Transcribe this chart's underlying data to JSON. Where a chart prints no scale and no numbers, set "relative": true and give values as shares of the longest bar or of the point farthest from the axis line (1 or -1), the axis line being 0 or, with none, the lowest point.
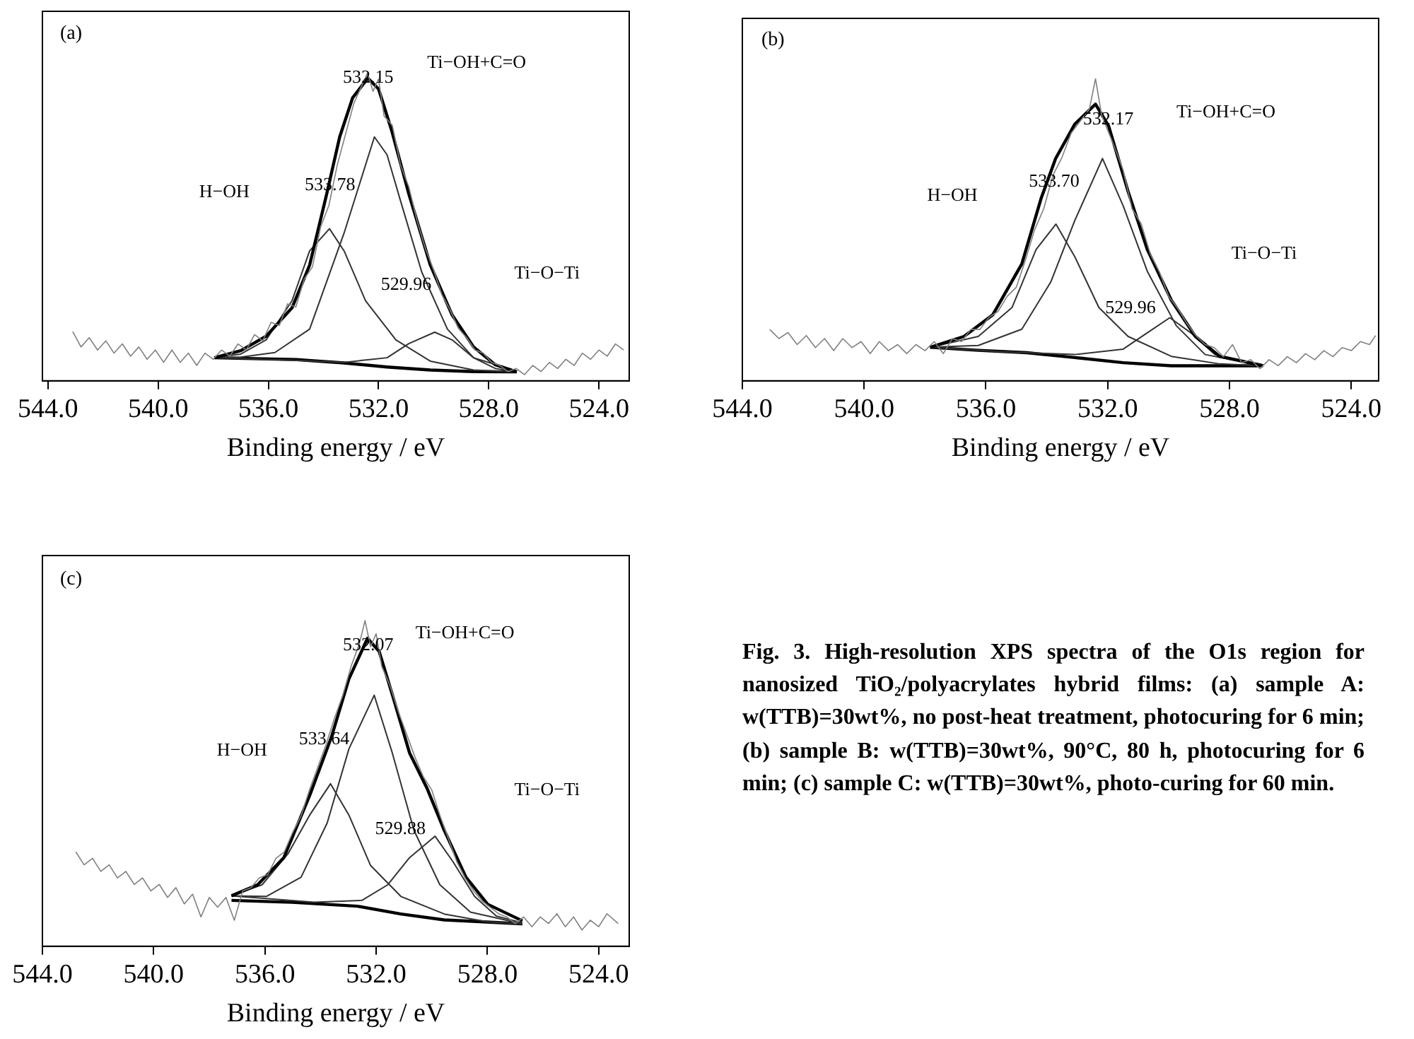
{
  "chart_data": [
    {
      "type": "line",
      "relative": true,
      "xlabel": "Binding energy / eV",
      "xlim": [
        544.2,
        522.9
      ],
      "xticks": [
        {
          "value": 544,
          "label": "544.0"
        },
        {
          "value": 540,
          "label": "540.0"
        },
        {
          "value": 536,
          "label": "536.0"
        },
        {
          "value": 532,
          "label": "532.0"
        },
        {
          "value": 528,
          "label": "528.0"
        },
        {
          "value": 524,
          "label": "524.0"
        }
      ],
      "tick_labels": "x",
      "grid": false,
      "legend": false,
      "marker": "none",
      "line_style": "solid",
      "series": [
        {
          "color": "#808080",
          "x": [
            543.1,
            542.8,
            542.5,
            542.2,
            541.9,
            541.6,
            541.3,
            541.0,
            540.7,
            540.4,
            540.1,
            539.8,
            539.5,
            539.2,
            538.9,
            538.6,
            538.3,
            538.0,
            537.7,
            537.4,
            537.1,
            536.8,
            536.5,
            536.2,
            535.9,
            535.6,
            535.3,
            535.0,
            534.7,
            534.4,
            534.1,
            533.8,
            533.5,
            533.2,
            532.9,
            532.6,
            532.4,
            532.2,
            532.0,
            531.8,
            531.5,
            531.2,
            530.9,
            530.6,
            530.3,
            530.0,
            529.7,
            529.4,
            529.1,
            528.8,
            528.5,
            528.2,
            527.9,
            527.6,
            527.3,
            527.0,
            526.7,
            526.4,
            526.1,
            525.8,
            525.5,
            525.2,
            524.9,
            524.6,
            524.3,
            524.0,
            523.7,
            523.4,
            523.1
          ],
          "values": [
            0.16,
            0.11,
            0.14,
            0.1,
            0.13,
            0.09,
            0.12,
            0.08,
            0.11,
            0.07,
            0.1,
            0.06,
            0.1,
            0.06,
            0.09,
            0.05,
            0.09,
            0.07,
            0.1,
            0.08,
            0.12,
            0.1,
            0.15,
            0.13,
            0.19,
            0.18,
            0.25,
            0.24,
            0.33,
            0.37,
            0.5,
            0.57,
            0.7,
            0.8,
            0.9,
            0.96,
            1.0,
            0.94,
            0.98,
            0.86,
            0.83,
            0.7,
            0.63,
            0.52,
            0.43,
            0.36,
            0.28,
            0.23,
            0.17,
            0.14,
            0.1,
            0.09,
            0.06,
            0.05,
            0.03,
            0.04,
            0.02,
            0.05,
            0.03,
            0.06,
            0.04,
            0.07,
            0.05,
            0.09,
            0.07,
            0.1,
            0.08,
            0.12,
            0.1
          ]
        },
        {
          "color": "#000000",
          "x": [
            537.96,
            537.0,
            536.08,
            535.14,
            534.5,
            533.88,
            533.41,
            532.94,
            532.39,
            532.0,
            531.53,
            530.9,
            530.12,
            529.33,
            528.55,
            527.76,
            526.98
          ],
          "values": [
            0.075,
            0.098,
            0.145,
            0.237,
            0.376,
            0.607,
            0.792,
            0.919,
            0.983,
            0.948,
            0.815,
            0.607,
            0.376,
            0.214,
            0.11,
            0.052,
            0.029
          ]
        },
        {
          "color": "#333333",
          "x": [
            537.96,
            537.0,
            535.76,
            534.5,
            533.25,
            532.15,
            531.69,
            531.2,
            530.43,
            529.5,
            528.55,
            526.98
          ],
          "values": [
            0.075,
            0.077,
            0.092,
            0.168,
            0.48,
            0.792,
            0.734,
            0.584,
            0.353,
            0.168,
            0.075,
            0.031
          ]
        },
        {
          "color": "#333333",
          "x": [
            537.96,
            537.0,
            536.08,
            535.14,
            534.5,
            533.78,
            533.25,
            532.47,
            531.37,
            530.12,
            528.55,
            526.98
          ],
          "values": [
            0.075,
            0.087,
            0.133,
            0.26,
            0.422,
            0.494,
            0.422,
            0.26,
            0.133,
            0.064,
            0.035,
            0.029
          ]
        },
        {
          "color": "#333333",
          "x": [
            537.96,
            534.82,
            533.25,
            531.69,
            530.9,
            529.96,
            529.33,
            528.55,
            527.76,
            526.98
          ],
          "values": [
            0.075,
            0.066,
            0.06,
            0.075,
            0.121,
            0.158,
            0.133,
            0.075,
            0.04,
            0.029
          ]
        },
        {
          "color": "#000000",
          "x": [
            537.96,
            534.98,
            533.25,
            531.69,
            530.12,
            528.55,
            526.98
          ],
          "values": [
            0.075,
            0.069,
            0.058,
            0.045,
            0.035,
            0.03,
            0.029
          ]
        }
      ],
      "annotations": [
        "(a)",
        "532.15",
        "Ti−OH+C=O",
        "H−OH",
        "533.78",
        "529.96",
        "Ti−O−Ti"
      ]
    },
    {
      "type": "line",
      "relative": true,
      "xlabel": "Binding energy / eV",
      "xlim": [
        544.0,
        523.1
      ],
      "xticks": [
        {
          "value": 544,
          "label": "544.0"
        },
        {
          "value": 540,
          "label": "540.0"
        },
        {
          "value": 536,
          "label": "536.0"
        },
        {
          "value": 532,
          "label": "532.0"
        },
        {
          "value": 528,
          "label": "528.0"
        },
        {
          "value": 524,
          "label": "524.0"
        }
      ],
      "tick_labels": "x",
      "grid": false,
      "legend": false,
      "marker": "none",
      "line_style": "solid",
      "series": [
        {
          "color": "#808080",
          "x": [
            543.1,
            542.8,
            542.5,
            542.2,
            541.9,
            541.6,
            541.3,
            541.0,
            540.7,
            540.4,
            540.1,
            539.8,
            539.5,
            539.2,
            538.9,
            538.6,
            538.3,
            538.0,
            537.7,
            537.4,
            537.1,
            536.8,
            536.5,
            536.2,
            535.9,
            535.6,
            535.3,
            535.0,
            534.7,
            534.4,
            534.1,
            533.8,
            533.5,
            533.2,
            532.9,
            532.6,
            532.4,
            532.2,
            532.0,
            531.8,
            531.5,
            531.2,
            530.9,
            530.6,
            530.3,
            530.0,
            529.7,
            529.4,
            529.1,
            528.8,
            528.5,
            528.2,
            527.9,
            527.6,
            527.3,
            527.0,
            526.7,
            526.4,
            526.1,
            525.8,
            525.5,
            525.2,
            524.9,
            524.6,
            524.3,
            524.0,
            523.7,
            523.4,
            523.2
          ],
          "values": [
            0.17,
            0.14,
            0.16,
            0.12,
            0.15,
            0.11,
            0.14,
            0.1,
            0.14,
            0.11,
            0.13,
            0.09,
            0.13,
            0.1,
            0.12,
            0.09,
            0.12,
            0.1,
            0.13,
            0.09,
            0.14,
            0.13,
            0.17,
            0.17,
            0.21,
            0.23,
            0.28,
            0.31,
            0.4,
            0.5,
            0.57,
            0.68,
            0.74,
            0.82,
            0.86,
            0.9,
            1.0,
            0.88,
            0.83,
            0.78,
            0.7,
            0.57,
            0.52,
            0.42,
            0.36,
            0.28,
            0.24,
            0.19,
            0.15,
            0.12,
            0.11,
            0.08,
            0.12,
            0.06,
            0.07,
            0.04,
            0.07,
            0.05,
            0.08,
            0.06,
            0.09,
            0.07,
            0.1,
            0.08,
            0.11,
            0.1,
            0.13,
            0.12,
            0.15
          ]
        },
        {
          "color": "#000000",
          "x": [
            537.83,
            536.72,
            535.77,
            534.82,
            534.19,
            533.71,
            533.08,
            532.4,
            531.97,
            531.33,
            530.7,
            529.91,
            529.12,
            528.32,
            526.9
          ],
          "values": [
            0.111,
            0.147,
            0.219,
            0.387,
            0.603,
            0.736,
            0.85,
            0.916,
            0.844,
            0.627,
            0.435,
            0.267,
            0.147,
            0.081,
            0.05
          ]
        },
        {
          "color": "#333333",
          "x": [
            537.83,
            536.25,
            534.82,
            533.87,
            533.08,
            532.17,
            531.49,
            530.7,
            529.75,
            528.8,
            526.9
          ],
          "values": [
            0.111,
            0.117,
            0.171,
            0.327,
            0.531,
            0.736,
            0.579,
            0.363,
            0.183,
            0.087,
            0.05
          ]
        },
        {
          "color": "#333333",
          "x": [
            537.83,
            536.25,
            535.14,
            534.35,
            533.7,
            533.08,
            532.29,
            531.33,
            529.91,
            528.32,
            526.9
          ],
          "values": [
            0.111,
            0.147,
            0.243,
            0.435,
            0.519,
            0.411,
            0.243,
            0.147,
            0.081,
            0.056,
            0.05
          ]
        },
        {
          "color": "#333333",
          "x": [
            537.83,
            535.45,
            533.08,
            531.49,
            530.7,
            529.96,
            529.27,
            528.48,
            526.9
          ],
          "values": [
            0.111,
            0.096,
            0.087,
            0.105,
            0.159,
            0.209,
            0.159,
            0.087,
            0.053
          ]
        },
        {
          "color": "#000000",
          "x": [
            537.83,
            536.25,
            534.66,
            533.08,
            531.49,
            529.91,
            526.9
          ],
          "values": [
            0.111,
            0.101,
            0.093,
            0.077,
            0.06,
            0.05,
            0.05
          ]
        }
      ],
      "annotations": [
        "(b)",
        "532.17",
        "Ti−OH+C=O",
        "H−OH",
        "533.70",
        "529.96",
        "Ti−O−Ti"
      ]
    },
    {
      "type": "line",
      "relative": true,
      "xlabel": "Binding energy / eV",
      "xlim": [
        544.0,
        522.9
      ],
      "xticks": [
        {
          "value": 544,
          "label": "544.0"
        },
        {
          "value": 540,
          "label": "540.0"
        },
        {
          "value": 536,
          "label": "536.0"
        },
        {
          "value": 532,
          "label": "532.0"
        },
        {
          "value": 528,
          "label": "528.0"
        },
        {
          "value": 524,
          "label": "524.0"
        }
      ],
      "tick_labels": "x",
      "grid": false,
      "legend": false,
      "marker": "none",
      "line_style": "solid",
      "series": [
        {
          "color": "#808080",
          "x": [
            542.8,
            542.5,
            542.2,
            541.9,
            541.6,
            541.3,
            541.0,
            540.7,
            540.4,
            540.1,
            539.8,
            539.5,
            539.2,
            538.9,
            538.6,
            538.3,
            538.0,
            537.7,
            537.4,
            537.1,
            536.8,
            536.5,
            536.2,
            535.9,
            535.6,
            535.3,
            535.0,
            534.7,
            534.4,
            534.1,
            533.8,
            533.5,
            533.2,
            532.9,
            532.6,
            532.4,
            532.2,
            532.0,
            531.8,
            531.5,
            531.2,
            530.9,
            530.6,
            530.3,
            530.0,
            529.7,
            529.4,
            529.1,
            528.8,
            528.5,
            528.2,
            527.9,
            527.6,
            527.3,
            527.0,
            526.7,
            526.4,
            526.1,
            525.8,
            525.5,
            525.2,
            524.9,
            524.6,
            524.3,
            524.0,
            523.7,
            523.3
          ],
          "values": [
            0.29,
            0.25,
            0.27,
            0.23,
            0.25,
            0.21,
            0.23,
            0.19,
            0.21,
            0.17,
            0.19,
            0.15,
            0.18,
            0.13,
            0.16,
            0.09,
            0.15,
            0.12,
            0.15,
            0.08,
            0.17,
            0.18,
            0.21,
            0.22,
            0.27,
            0.29,
            0.35,
            0.4,
            0.48,
            0.55,
            0.62,
            0.7,
            0.77,
            0.86,
            0.93,
            1.0,
            0.92,
            0.96,
            0.86,
            0.8,
            0.72,
            0.65,
            0.58,
            0.52,
            0.48,
            0.4,
            0.33,
            0.26,
            0.21,
            0.17,
            0.14,
            0.12,
            0.1,
            0.09,
            0.07,
            0.09,
            0.06,
            0.09,
            0.07,
            0.1,
            0.06,
            0.09,
            0.05,
            0.08,
            0.06,
            0.1,
            0.07
          ]
        },
        {
          "color": "#000000",
          "x": [
            537.2,
            536.26,
            535.32,
            534.39,
            533.61,
            532.98,
            532.31,
            531.89,
            531.42,
            530.8,
            530.18,
            529.55,
            528.77,
            527.99,
            526.74
          ],
          "values": [
            0.155,
            0.189,
            0.272,
            0.463,
            0.642,
            0.821,
            0.946,
            0.905,
            0.773,
            0.594,
            0.487,
            0.356,
            0.212,
            0.129,
            0.078
          ]
        },
        {
          "color": "#333333",
          "x": [
            537.2,
            535.95,
            534.7,
            533.76,
            532.98,
            532.07,
            531.42,
            530.64,
            529.71,
            528.61,
            526.74
          ],
          "values": [
            0.155,
            0.153,
            0.212,
            0.379,
            0.606,
            0.771,
            0.594,
            0.356,
            0.189,
            0.105,
            0.069
          ]
        },
        {
          "color": "#333333",
          "x": [
            537.2,
            536.1,
            535.17,
            534.39,
            533.64,
            532.98,
            532.2,
            531.11,
            529.55,
            527.99,
            526.74
          ],
          "values": [
            0.155,
            0.189,
            0.284,
            0.403,
            0.499,
            0.403,
            0.248,
            0.153,
            0.099,
            0.075,
            0.069
          ]
        },
        {
          "color": "#333333",
          "x": [
            537.2,
            534.23,
            532.51,
            531.58,
            530.8,
            529.88,
            529.24,
            528.46,
            527.68,
            526.74
          ],
          "values": [
            0.155,
            0.135,
            0.141,
            0.189,
            0.272,
            0.338,
            0.26,
            0.153,
            0.093,
            0.072
          ]
        },
        {
          "color": "#000000",
          "x": [
            537.2,
            535.01,
            532.67,
            531.11,
            529.55,
            526.74
          ],
          "values": [
            0.141,
            0.135,
            0.123,
            0.099,
            0.081,
            0.069
          ]
        }
      ],
      "annotations": [
        "(c)",
        "532.07",
        "Ti−OH+C=O",
        "H−OH",
        "533.64",
        "529.88",
        "Ti−O−Ti"
      ]
    },
    {
      "type": "other",
      "annotations": [
        "Fig. 3.  High-resolution XPS spectra of the O1s region for nanosized TiO₂/polyacrylates hybrid films: (a) sample A: w(TTB)=30wt%, no post-heat treatment, photocuring for 6 min; (b) sample B: w(TTB)=30wt%, 90°C, 80 h, photocuring for 6 min; (c) sample C: w(TTB)=30wt%, photo-curing for 60 min."
      ]
    }
  ]
}
